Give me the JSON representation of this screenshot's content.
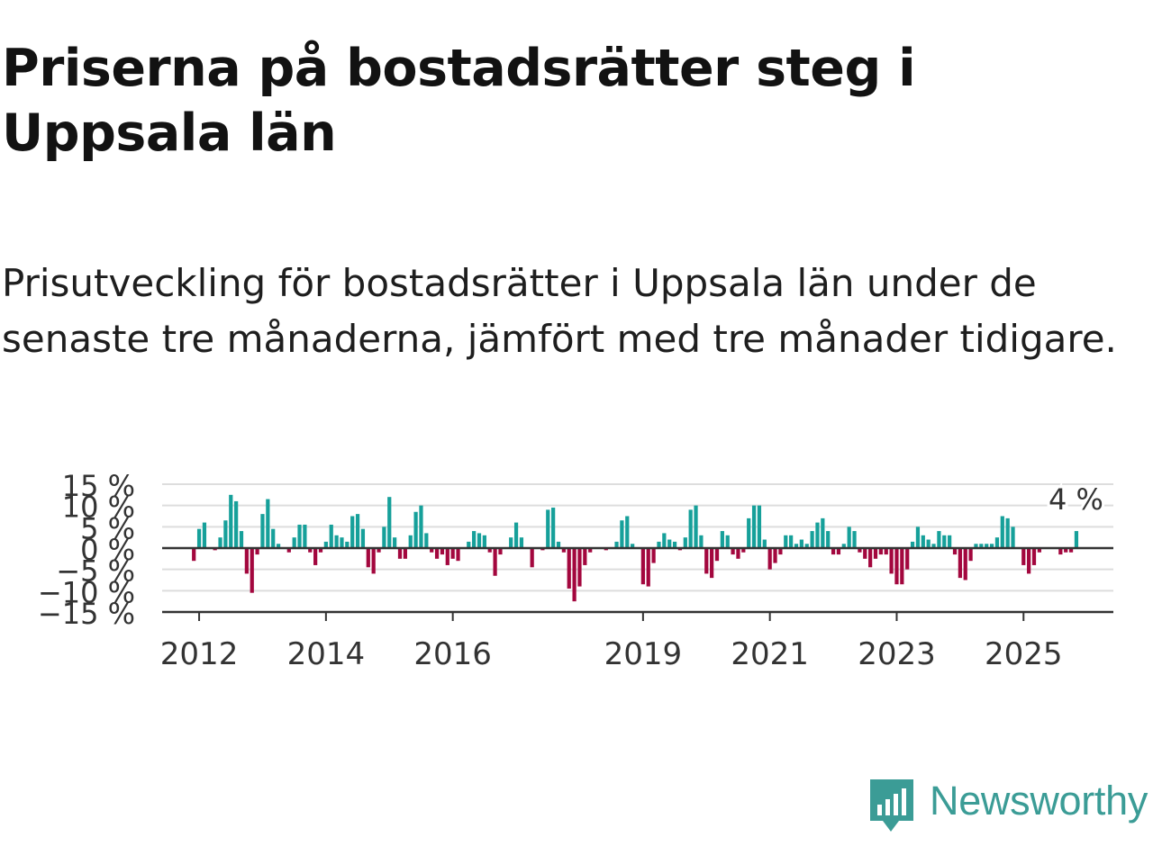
{
  "header": {
    "title": "Priserna på bostadsrätter steg i Uppsala län",
    "subtitle": "Prisutveckling för bostadsrätter i Uppsala län under de senaste tre månaderna, jämfört med tre månader tidigare."
  },
  "brand": {
    "name": "Newsworthy",
    "icon": "newsworthy-logo-icon",
    "color": "#3b9c96"
  },
  "colors": {
    "positive": "#16a09a",
    "negative": "#a3073e"
  },
  "chart_data": {
    "type": "bar",
    "title": "",
    "xlabel": "",
    "ylabel": "",
    "ylim": [
      -15,
      15
    ],
    "y_ticks": [
      15,
      10,
      5,
      0,
      -5,
      -10,
      -15
    ],
    "y_tick_labels": [
      "15 %",
      "10 %",
      "5 %",
      "0 %",
      "−5 %",
      "−10 %",
      "−15 %"
    ],
    "x_ticks": [
      "2012",
      "2014",
      "2016",
      "2019",
      "2021",
      "2023",
      "2025"
    ],
    "x_range": [
      "2011-06",
      "2026-06"
    ],
    "grid": true,
    "last_value_label": "4 %",
    "series": [
      {
        "start": "2011-12",
        "frequency": "monthly",
        "values": [
          -3,
          4.5,
          6,
          0,
          -0.5,
          2.5,
          6.5,
          12.5,
          11,
          4,
          -6,
          -10.5,
          -1.5,
          8,
          11.5,
          4.5,
          1,
          0,
          -1,
          2.5,
          5.5,
          5.5,
          -1,
          -4,
          -1,
          1.5,
          5.5,
          3,
          2.5,
          1.5,
          7.5,
          8,
          4.5,
          -4.5,
          -6,
          -1,
          5,
          12,
          2.5,
          -2.5,
          -2.5,
          3,
          8.5,
          10,
          3.5,
          -1,
          -2.5,
          -1.5,
          -4,
          -2.5,
          -3,
          0,
          1.5,
          4,
          3.5,
          3,
          -1,
          -6.5,
          -1.5,
          0,
          2.5,
          6,
          2.5,
          0,
          -4.5,
          0,
          -0.5,
          9,
          9.5,
          1.5,
          -1,
          -9.5,
          -12.5,
          -9,
          -4,
          -1,
          0,
          0,
          -0.5,
          0,
          1.5,
          6.5,
          7.5,
          1,
          0,
          -8.5,
          -9,
          -3.5,
          1.5,
          3.5,
          2,
          1.5,
          -0.5,
          2.5,
          9,
          10,
          3,
          -6,
          -7,
          -3,
          4,
          3,
          -1.5,
          -2.5,
          -1,
          7,
          10,
          10,
          2,
          -5,
          -3.5,
          -1.5,
          3,
          3,
          1,
          2,
          1,
          4,
          6,
          7,
          4,
          -1.5,
          -1.5,
          1,
          5,
          4,
          -1,
          -2.5,
          -4.5,
          -2.5,
          -1.5,
          -1.5,
          -6,
          -8.5,
          -8.5,
          -5,
          1.5,
          5,
          3,
          2,
          1,
          4,
          3,
          3,
          -1.5,
          -7,
          -7.5,
          -3,
          1,
          1,
          1,
          1,
          2.5,
          7.5,
          7,
          5,
          0,
          -4,
          -6,
          -4,
          -1,
          0,
          0,
          0,
          -1.5,
          -1,
          -1,
          4
        ]
      }
    ]
  }
}
